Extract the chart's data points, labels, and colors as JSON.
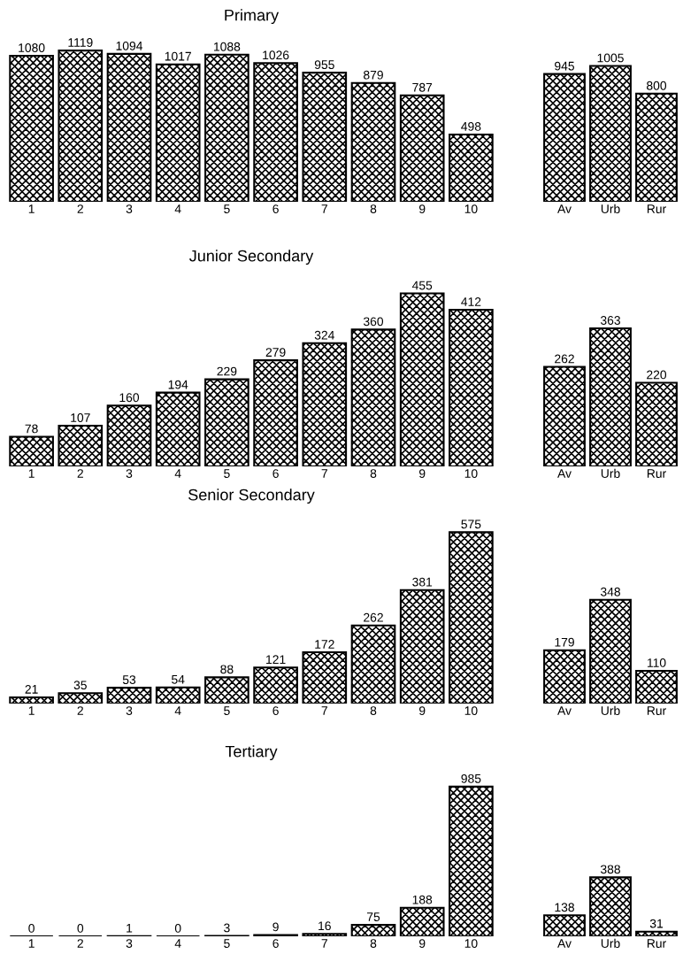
{
  "chart_data": [
    {
      "type": "bar",
      "title": "Primary",
      "categories": [
        "1",
        "2",
        "3",
        "4",
        "5",
        "6",
        "7",
        "8",
        "9",
        "10"
      ],
      "values": [
        1080,
        1119,
        1094,
        1017,
        1088,
        1026,
        955,
        879,
        787,
        498
      ],
      "color": "#000000",
      "data_labels": true,
      "tick_labels": "x"
    },
    {
      "type": "bar",
      "categories": [
        "Av",
        "Urb",
        "Rur"
      ],
      "values": [
        945,
        1005,
        800
      ],
      "color": "#000000",
      "data_labels": true,
      "tick_labels": "x"
    },
    {
      "type": "bar",
      "title": "Junior Secondary",
      "categories": [
        "1",
        "2",
        "3",
        "4",
        "5",
        "6",
        "7",
        "8",
        "9",
        "10"
      ],
      "values": [
        78,
        107,
        160,
        194,
        229,
        279,
        324,
        360,
        455,
        412
      ],
      "color": "#000000",
      "data_labels": true,
      "tick_labels": "x"
    },
    {
      "type": "bar",
      "categories": [
        "Av",
        "Urb",
        "Rur"
      ],
      "values": [
        262,
        363,
        220
      ],
      "color": "#000000",
      "data_labels": true,
      "tick_labels": "x"
    },
    {
      "type": "bar",
      "title": "Senior Secondary",
      "categories": [
        "1",
        "2",
        "3",
        "4",
        "5",
        "6",
        "7",
        "8",
        "9",
        "10"
      ],
      "values": [
        21,
        35,
        53,
        54,
        88,
        121,
        172,
        262,
        381,
        575
      ],
      "color": "#000000",
      "data_labels": true,
      "tick_labels": "x"
    },
    {
      "type": "bar",
      "categories": [
        "Av",
        "Urb",
        "Rur"
      ],
      "values": [
        179,
        348,
        110
      ],
      "color": "#000000",
      "data_labels": true,
      "tick_labels": "x"
    },
    {
      "type": "bar",
      "title": "Tertiary",
      "categories": [
        "1",
        "2",
        "3",
        "4",
        "5",
        "6",
        "7",
        "8",
        "9",
        "10"
      ],
      "values": [
        0,
        0,
        1,
        0,
        3,
        9,
        16,
        75,
        188,
        985
      ],
      "color": "#000000",
      "data_labels": true,
      "tick_labels": "x"
    },
    {
      "type": "bar",
      "categories": [
        "Av",
        "Urb",
        "Rur"
      ],
      "values": [
        138,
        388,
        31
      ],
      "color": "#000000",
      "data_labels": true,
      "tick_labels": "x"
    }
  ]
}
